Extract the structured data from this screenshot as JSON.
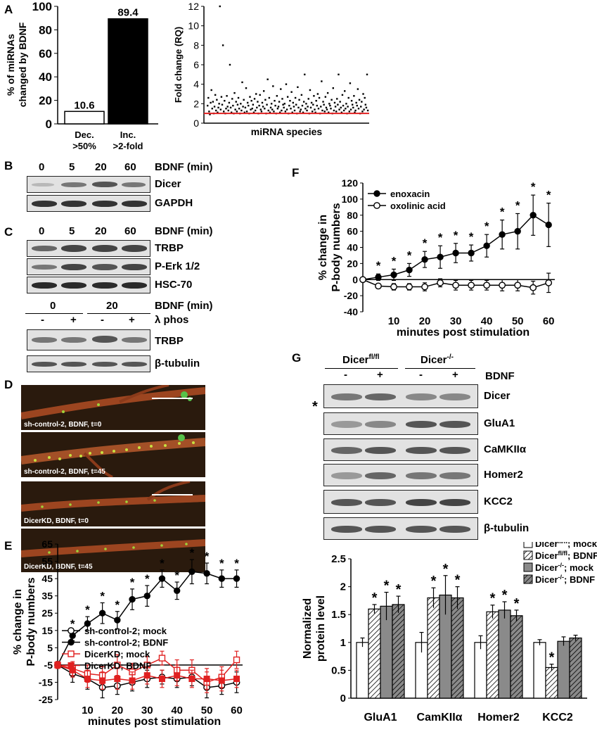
{
  "panels": {
    "A": "A",
    "B": "B",
    "C": "C",
    "D": "D",
    "E": "E",
    "F": "F",
    "G": "G"
  },
  "chart_data": [
    {
      "id": "A-bar",
      "type": "bar",
      "categories": [
        "Dec. >50%",
        "Inc. >2-fold"
      ],
      "category_lines": [
        [
          "Dec.",
          ">50%"
        ],
        [
          "Inc.",
          ">2-fold"
        ]
      ],
      "values": [
        10.6,
        89.4
      ],
      "value_labels": [
        "10.6",
        "89.4"
      ],
      "bar_fills": [
        "#ffffff",
        "#000000"
      ],
      "ylabel_lines": [
        "% of miRNAs",
        "changed by BDNF"
      ],
      "ylim": [
        0,
        100
      ],
      "yticks": [
        0,
        20,
        40,
        60,
        80,
        100
      ]
    },
    {
      "id": "A-scatter",
      "type": "scatter",
      "xlabel": "miRNA species",
      "ylabel": "Fold change (RQ)",
      "ylim": [
        0,
        12
      ],
      "yticks": [
        0,
        2,
        4,
        6,
        8,
        10,
        12
      ],
      "reference_line": 1,
      "reference_color": "#e02020",
      "values": [
        1.8,
        2.6,
        1.2,
        0.9,
        2.1,
        3.4,
        1.5,
        2.2,
        1.0,
        1.7,
        2.9,
        1.3,
        2.4,
        1.1,
        1.6,
        2.0,
        12.0,
        1.4,
        2.7,
        1.9,
        8.0,
        1.2,
        2.3,
        1.0,
        1.5,
        2.8,
        1.7,
        1.3,
        2.1,
        6.0,
        1.6,
        1.1,
        2.5,
        1.8,
        1.0,
        3.1,
        1.4,
        2.2,
        1.2,
        1.9,
        2.6,
        1.5,
        1.0,
        2.0,
        1.3,
        4.2,
        1.7,
        2.4,
        1.1,
        1.6,
        3.6,
        1.2,
        2.1,
        1.8,
        1.0,
        2.7,
        1.4,
        2.3,
        1.5,
        1.9,
        1.1,
        2.5,
        1.3,
        3.0,
        1.6,
        2.2,
        1.0,
        1.8,
        2.9,
        1.4,
        1.2,
        2.1,
        1.7,
        3.3,
        1.5,
        2.4,
        1.0,
        1.9,
        4.5,
        1.3,
        2.6,
        1.1,
        1.6,
        2.0,
        1.4,
        3.8,
        1.2,
        2.3,
        1.8,
        1.0,
        2.8,
        1.5,
        1.7,
        2.2,
        1.1,
        3.5,
        1.3,
        2.5,
        1.9,
        1.6,
        2.0,
        1.2,
        4.0,
        1.4,
        2.7,
        1.0,
        1.8,
        2.3,
        1.5,
        3.2,
        1.1,
        2.1,
        1.7,
        1.3,
        2.6,
        1.9,
        1.0,
        3.7,
        1.6,
        2.4,
        1.2,
        1.4,
        2.9,
        1.8,
        1.1,
        2.2,
        5.0,
        1.5,
        2.0,
        1.3,
        1.7,
        2.5,
        1.0,
        3.4,
        1.6,
        2.1,
        1.2,
        1.9,
        2.8,
        1.4,
        1.1,
        2.3,
        1.8,
        3.0,
        1.5,
        2.6,
        1.0,
        1.7,
        4.3,
        1.3,
        2.2,
        1.9,
        1.2,
        2.7,
        1.6,
        1.4,
        3.1,
        1.1,
        2.0,
        1.8,
        1.5,
        2.4,
        1.0,
        3.6,
        1.3,
        2.1,
        1.7,
        1.2,
        2.5,
        1.9,
        5.0,
        1.4,
        2.2,
        1.6,
        1.1,
        2.9,
        1.8,
        1.3,
        3.3,
        1.5,
        2.0,
        1.0,
        1.7,
        2.6,
        1.2,
        4.1,
        1.4,
        2.3,
        1.9,
        1.6,
        2.8,
        1.1,
        1.3,
        2.1,
        1.8,
        3.5,
        1.5,
        2.4,
        1.0,
        1.7,
        2.2,
        1.2,
        3.0,
        1.4,
        2.6,
        1.9,
        1.6,
        5.0,
        1.3
      ]
    },
    {
      "id": "E-line",
      "type": "line",
      "xlabel": "minutes post stimulation",
      "ylabel_lines": [
        "% change in",
        "P-body numbers"
      ],
      "ylim": [
        -25,
        65
      ],
      "yticks": [
        -25,
        -15,
        -5,
        5,
        15,
        25,
        35,
        45,
        55,
        65
      ],
      "xticks": [
        10,
        20,
        30,
        40,
        50,
        60
      ],
      "xlim": [
        0,
        62
      ],
      "x": [
        0,
        5,
        10,
        15,
        20,
        25,
        30,
        35,
        40,
        45,
        50,
        55,
        60
      ],
      "series": [
        {
          "name": "sh-control-2; mock",
          "values": [
            -5,
            -10,
            -13,
            -18,
            -17,
            -15,
            -13,
            -12,
            -13,
            -12,
            -18,
            -17,
            -15
          ],
          "err": [
            2,
            5,
            6,
            6,
            5,
            5,
            5,
            4,
            5,
            5,
            6,
            5,
            6
          ],
          "color": "#000000",
          "marker": "circle-open"
        },
        {
          "name": "sh-control-2; BDNF",
          "values": [
            -5,
            12,
            19,
            25,
            21,
            33,
            35,
            45,
            38,
            49,
            48,
            45,
            45
          ],
          "err": [
            2,
            3,
            4,
            6,
            5,
            6,
            6,
            5,
            5,
            7,
            6,
            5,
            5
          ],
          "color": "#000000",
          "marker": "circle-filled"
        },
        {
          "name": "DicerKD; mock",
          "values": [
            -5,
            -7,
            -10,
            -11,
            -5,
            -9,
            -5,
            -1,
            -8,
            -8,
            -15,
            -12,
            -2
          ],
          "err": [
            2,
            4,
            5,
            5,
            6,
            5,
            5,
            4,
            6,
            6,
            6,
            6,
            5
          ],
          "color": "#e02020",
          "marker": "square-open"
        },
        {
          "name": "DicerKD; BDNF",
          "values": [
            -5,
            -8,
            -13,
            -14,
            -13,
            -14,
            -11,
            -13,
            -11,
            -13,
            -13,
            -14,
            -13
          ],
          "err": [
            2,
            4,
            5,
            5,
            6,
            5,
            5,
            5,
            6,
            5,
            6,
            6,
            5
          ],
          "color": "#e02020",
          "marker": "square-filled"
        }
      ],
      "star_x": [
        5,
        10,
        15,
        20,
        25,
        30,
        35,
        40,
        45,
        50,
        55,
        60
      ],
      "star": "*"
    },
    {
      "id": "F-line",
      "type": "line",
      "xlabel": "minutes post stimulation",
      "ylabel_lines": [
        "% change in",
        "P-body numbers"
      ],
      "ylim": [
        -40,
        120
      ],
      "yticks": [
        -40,
        -20,
        0,
        20,
        40,
        60,
        80,
        100,
        120
      ],
      "xticks": [
        10,
        20,
        30,
        40,
        50,
        60
      ],
      "xlim": [
        0,
        62
      ],
      "x": [
        0,
        5,
        10,
        15,
        20,
        25,
        30,
        35,
        40,
        45,
        50,
        55,
        60
      ],
      "series": [
        {
          "name": "enoxacin",
          "values": [
            0,
            3,
            6,
            12,
            25,
            28,
            33,
            33,
            42,
            56,
            60,
            80,
            68
          ],
          "err": [
            1,
            4,
            7,
            8,
            10,
            14,
            12,
            10,
            14,
            18,
            22,
            25,
            27
          ],
          "color": "#000000",
          "marker": "circle-filled"
        },
        {
          "name": "oxolinic acid",
          "values": [
            0,
            -8,
            -9,
            -9,
            -9,
            -4,
            -7,
            -7,
            -7,
            -7,
            -7,
            -10,
            -4
          ],
          "err": [
            1,
            3,
            4,
            4,
            5,
            5,
            6,
            6,
            6,
            7,
            7,
            8,
            12
          ],
          "color": "#000000",
          "marker": "circle-open"
        }
      ],
      "star_x": [
        5,
        10,
        15,
        20,
        25,
        30,
        35,
        40,
        45,
        50,
        55,
        60
      ],
      "star": "*"
    },
    {
      "id": "G-bar",
      "type": "bar",
      "ylabel_lines": [
        "Normalized",
        "protein level"
      ],
      "ylim": [
        0,
        2.5
      ],
      "yticks": [
        0,
        0.5,
        1,
        1.5,
        2,
        2.5
      ],
      "categories": [
        "GluA1",
        "CamKIIα",
        "Homer2",
        "KCC2"
      ],
      "series": [
        {
          "name": "Dicerfl/fl; mock",
          "values": [
            1.0,
            1.0,
            1.0,
            1.0
          ],
          "err": [
            0.08,
            0.18,
            0.12,
            0.05
          ],
          "stars": [
            0,
            0,
            0,
            0
          ]
        },
        {
          "name": "Dicerfl/fl; BDNF",
          "values": [
            1.6,
            1.8,
            1.55,
            0.55
          ],
          "err": [
            0.08,
            0.18,
            0.12,
            0.06
          ],
          "stars": [
            1,
            1,
            1,
            1
          ]
        },
        {
          "name": "Dicer-/-; mock",
          "values": [
            1.65,
            1.85,
            1.58,
            1.02
          ],
          "err": [
            0.25,
            0.35,
            0.15,
            0.08
          ],
          "stars": [
            1,
            1,
            1,
            0
          ]
        },
        {
          "name": "Dicer-/-; BDNF",
          "values": [
            1.68,
            1.8,
            1.48,
            1.08
          ],
          "err": [
            0.15,
            0.2,
            0.1,
            0.05
          ],
          "stars": [
            1,
            1,
            1,
            0
          ]
        }
      ],
      "legend_entries": [
        {
          "base": "Dicer",
          "sup": "fl/fl",
          "suffix": "; mock"
        },
        {
          "base": "Dicer",
          "sup": "fl/fl",
          "suffix": "; BDNF"
        },
        {
          "base": "Dicer",
          "sup": "-/-",
          "suffix": "; mock"
        },
        {
          "base": "Dicer",
          "sup": "-/-",
          "suffix": "; BDNF"
        }
      ],
      "category_labels": [
        "GluA1",
        "CamKIIα",
        "Homer2",
        "KCC2"
      ]
    }
  ],
  "blotB": {
    "header_nums": [
      "0",
      "5",
      "20",
      "60"
    ],
    "header_label": "BDNF (min)",
    "rows": [
      "Dicer",
      "GAPDH"
    ]
  },
  "blotC": {
    "header_nums": [
      "0",
      "5",
      "20",
      "60"
    ],
    "header_label": "BDNF (min)",
    "rows": [
      "TRBP",
      "P-Erk 1/2",
      "HSC-70"
    ],
    "lower_groups": [
      "0",
      "20"
    ],
    "lower_header": "BDNF (min)",
    "lower_signs": [
      "-",
      "+",
      "-",
      "+"
    ],
    "lower_sign_label": "λ phos",
    "lower_rows": [
      "TRBP",
      "β-tubulin"
    ]
  },
  "panelD": {
    "captions": [
      "sh-control-2, BDNF, t=0",
      "sh-control-2, BDNF, t=45",
      "DicerKD,  BDNF, t=0",
      "DicerKD, BDNF, t=45"
    ]
  },
  "panelE": {
    "legend": [
      "sh-control-2; mock",
      "sh-control-2; BDNF",
      "DicerKD; mock",
      "DicerKD; BDNF"
    ]
  },
  "panelF": {
    "legend": [
      "enoxacin",
      "oxolinic acid"
    ]
  },
  "blotG": {
    "groups": [
      {
        "base": "Dicer",
        "sup": "fl/fl"
      },
      {
        "base": "Dicer",
        "sup": "-/-"
      }
    ],
    "signs": [
      "-",
      "+",
      "-",
      "+"
    ],
    "bdnf": "BDNF",
    "rows": [
      "Dicer",
      "GluA1",
      "CaMKIIα",
      "Homer2",
      "KCC2",
      "β-tubulin"
    ],
    "asterisk": "*"
  }
}
